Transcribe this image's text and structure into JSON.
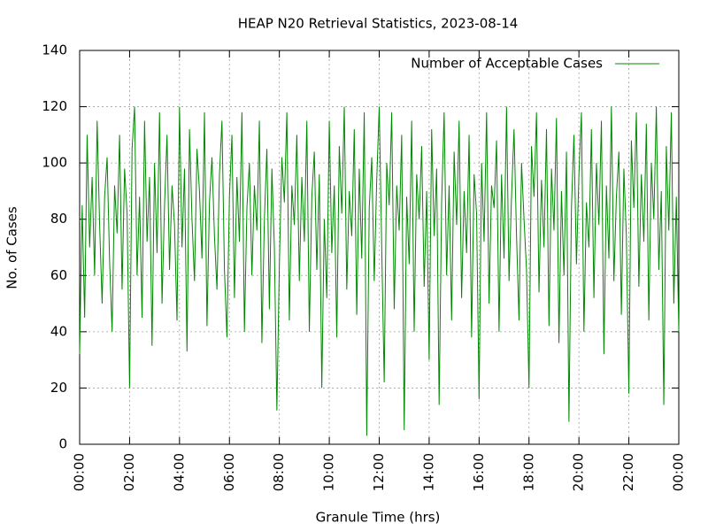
{
  "chart_data": {
    "type": "line",
    "title": "HEAP N20 Retrieval Statistics, 2023-08-14",
    "xlabel": "Granule Time (hrs)",
    "ylabel": "No. of Cases",
    "legend": "top-right",
    "grid": true,
    "xlim": [
      0,
      24
    ],
    "ylim": [
      0,
      140
    ],
    "xticks": [
      {
        "value": 0,
        "label": "00:00"
      },
      {
        "value": 2,
        "label": "02:00"
      },
      {
        "value": 4,
        "label": "04:00"
      },
      {
        "value": 6,
        "label": "06:00"
      },
      {
        "value": 8,
        "label": "08:00"
      },
      {
        "value": 10,
        "label": "10:00"
      },
      {
        "value": 12,
        "label": "12:00"
      },
      {
        "value": 14,
        "label": "14:00"
      },
      {
        "value": 16,
        "label": "16:00"
      },
      {
        "value": 18,
        "label": "18:00"
      },
      {
        "value": 20,
        "label": "20:00"
      },
      {
        "value": 22,
        "label": "22:00"
      },
      {
        "value": 24,
        "label": "00:00"
      }
    ],
    "yticks": [
      0,
      20,
      40,
      60,
      80,
      100,
      120,
      140
    ],
    "x": [
      0,
      0.1,
      0.2,
      0.3,
      0.4,
      0.5,
      0.6,
      0.7,
      0.8,
      0.9,
      1,
      1.1,
      1.2,
      1.3,
      1.4,
      1.5,
      1.6,
      1.7,
      1.8,
      1.9,
      2,
      2.1,
      2.2,
      2.3,
      2.4,
      2.5,
      2.6,
      2.7,
      2.8,
      2.9,
      3,
      3.1,
      3.2,
      3.3,
      3.4,
      3.5,
      3.6,
      3.7,
      3.8,
      3.9,
      4,
      4.1,
      4.2,
      4.3,
      4.4,
      4.5,
      4.6,
      4.7,
      4.8,
      4.9,
      5,
      5.1,
      5.2,
      5.3,
      5.4,
      5.5,
      5.6,
      5.7,
      5.8,
      5.9,
      6,
      6.1,
      6.2,
      6.3,
      6.4,
      6.5,
      6.6,
      6.7,
      6.8,
      6.9,
      7,
      7.1,
      7.2,
      7.3,
      7.4,
      7.5,
      7.6,
      7.7,
      7.8,
      7.9,
      8,
      8.1,
      8.2,
      8.3,
      8.4,
      8.5,
      8.6,
      8.7,
      8.8,
      8.9,
      9,
      9.1,
      9.2,
      9.3,
      9.4,
      9.5,
      9.6,
      9.7,
      9.8,
      9.9,
      10,
      10.1,
      10.2,
      10.3,
      10.4,
      10.5,
      10.6,
      10.7,
      10.8,
      10.9,
      11,
      11.1,
      11.2,
      11.3,
      11.4,
      11.5,
      11.6,
      11.7,
      11.8,
      11.9,
      12,
      12.1,
      12.2,
      12.3,
      12.4,
      12.5,
      12.6,
      12.7,
      12.8,
      12.9,
      13,
      13.1,
      13.2,
      13.3,
      13.4,
      13.5,
      13.6,
      13.7,
      13.8,
      13.9,
      14,
      14.1,
      14.2,
      14.3,
      14.4,
      14.5,
      14.6,
      14.7,
      14.8,
      14.9,
      15,
      15.1,
      15.2,
      15.3,
      15.4,
      15.5,
      15.6,
      15.7,
      15.8,
      15.9,
      16,
      16.1,
      16.2,
      16.3,
      16.4,
      16.5,
      16.6,
      16.7,
      16.8,
      16.9,
      17,
      17.1,
      17.2,
      17.3,
      17.4,
      17.5,
      17.6,
      17.7,
      17.8,
      17.9,
      18,
      18.1,
      18.2,
      18.3,
      18.4,
      18.5,
      18.6,
      18.7,
      18.8,
      18.9,
      19,
      19.1,
      19.2,
      19.3,
      19.4,
      19.5,
      19.6,
      19.7,
      19.8,
      19.9,
      20,
      20.1,
      20.2,
      20.3,
      20.4,
      20.5,
      20.6,
      20.7,
      20.8,
      20.9,
      21,
      21.1,
      21.2,
      21.3,
      21.4,
      21.5,
      21.6,
      21.7,
      21.8,
      21.9,
      22,
      22.1,
      22.2,
      22.3,
      22.4,
      22.5,
      22.6,
      22.7,
      22.8,
      22.9,
      23,
      23.1,
      23.2,
      23.3,
      23.4,
      23.5,
      23.6,
      23.7,
      23.8,
      23.9,
      24
    ],
    "series": [
      {
        "name": "Number of Acceptable Cases",
        "color": "#008800",
        "values": [
          32,
          85,
          45,
          110,
          70,
          95,
          60,
          115,
          78,
          50,
          88,
          102,
          65,
          40,
          92,
          75,
          110,
          55,
          98,
          82,
          20,
          105,
          120,
          60,
          88,
          45,
          115,
          72,
          95,
          35,
          100,
          68,
          118,
          50,
          85,
          110,
          62,
          92,
          78,
          44,
          120,
          70,
          98,
          33,
          112,
          80,
          58,
          105,
          90,
          66,
          118,
          42,
          86,
          102,
          74,
          55,
          96,
          115,
          62,
          38,
          88,
          110,
          52,
          95,
          72,
          118,
          40,
          84,
          100,
          60,
          92,
          76,
          115,
          36,
          80,
          105,
          48,
          98,
          70,
          12,
          64,
          102,
          86,
          118,
          44,
          92,
          78,
          110,
          58,
          95,
          72,
          115,
          40,
          88,
          104,
          62,
          96,
          20,
          80,
          52,
          115,
          68,
          92,
          38,
          106,
          82,
          120,
          55,
          90,
          74,
          112,
          46,
          98,
          66,
          118,
          3,
          84,
          102,
          58,
          94,
          120,
          70,
          22,
          100,
          85,
          118,
          48,
          92,
          76,
          110,
          5,
          88,
          64,
          115,
          40,
          96,
          80,
          106,
          56,
          90,
          30,
          112,
          74,
          98,
          14,
          86,
          118,
          60,
          92,
          44,
          104,
          78,
          115,
          52,
          90,
          68,
          110,
          38,
          96,
          82,
          16,
          100,
          72,
          118,
          50,
          92,
          84,
          108,
          40,
          96,
          66,
          120,
          58,
          88,
          112,
          74,
          44,
          100,
          80,
          62,
          20,
          106,
          88,
          118,
          54,
          94,
          70,
          112,
          42,
          98,
          76,
          116,
          36,
          90,
          60,
          104,
          8,
          84,
          110,
          64,
          96,
          118,
          40,
          86,
          70,
          112,
          52,
          100,
          78,
          115,
          32,
          92,
          66,
          120,
          58,
          88,
          104,
          46,
          98,
          74,
          18,
          108,
          84,
          118,
          56,
          96,
          72,
          114,
          44,
          100,
          80,
          120,
          62,
          90,
          14,
          106,
          76,
          118,
          50,
          88,
          40
        ]
      }
    ]
  }
}
